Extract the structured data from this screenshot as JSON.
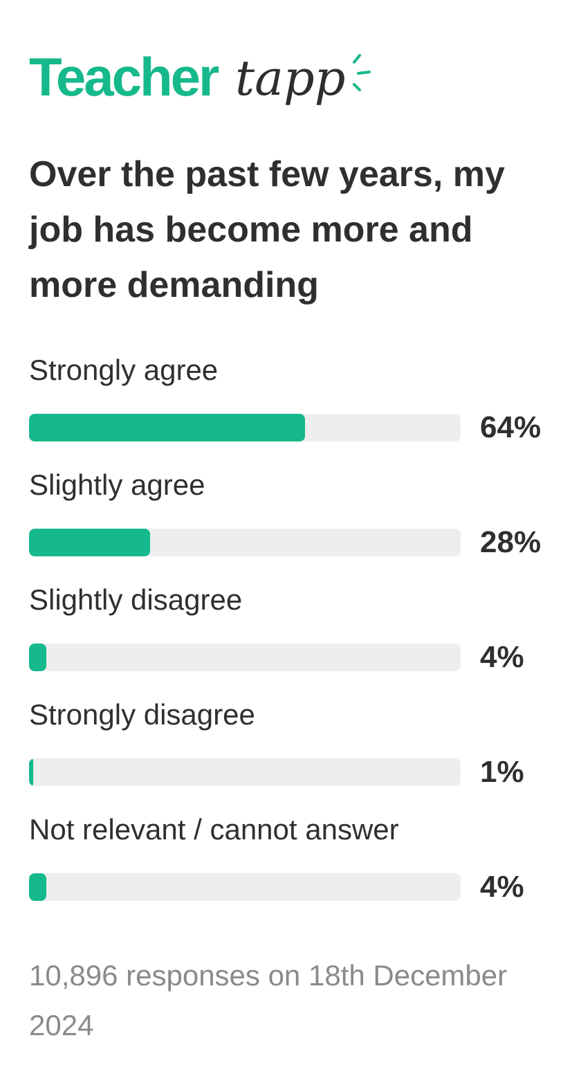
{
  "brand": {
    "part1": "Teacher",
    "part2": "tapp",
    "primary_color": "#16b98b",
    "text_color": "#2f2f2f",
    "track_color": "#eeeeee",
    "footer_color": "#8a8a8a"
  },
  "question": "Over the past few years, my job has become more and more demanding",
  "footer": "10,896 responses on 18th December 2024",
  "chart_data": {
    "type": "bar",
    "orientation": "horizontal",
    "title": "Over the past few years, my job has become more and more demanding",
    "categories": [
      "Strongly agree",
      "Slightly agree",
      "Slightly disagree",
      "Strongly disagree",
      "Not relevant / cannot answer"
    ],
    "values": [
      64,
      28,
      4,
      1,
      4
    ],
    "value_labels": [
      "64%",
      "28%",
      "4%",
      "1%",
      "4%"
    ],
    "xlim": [
      0,
      100
    ],
    "grid": false,
    "legend": "none"
  }
}
